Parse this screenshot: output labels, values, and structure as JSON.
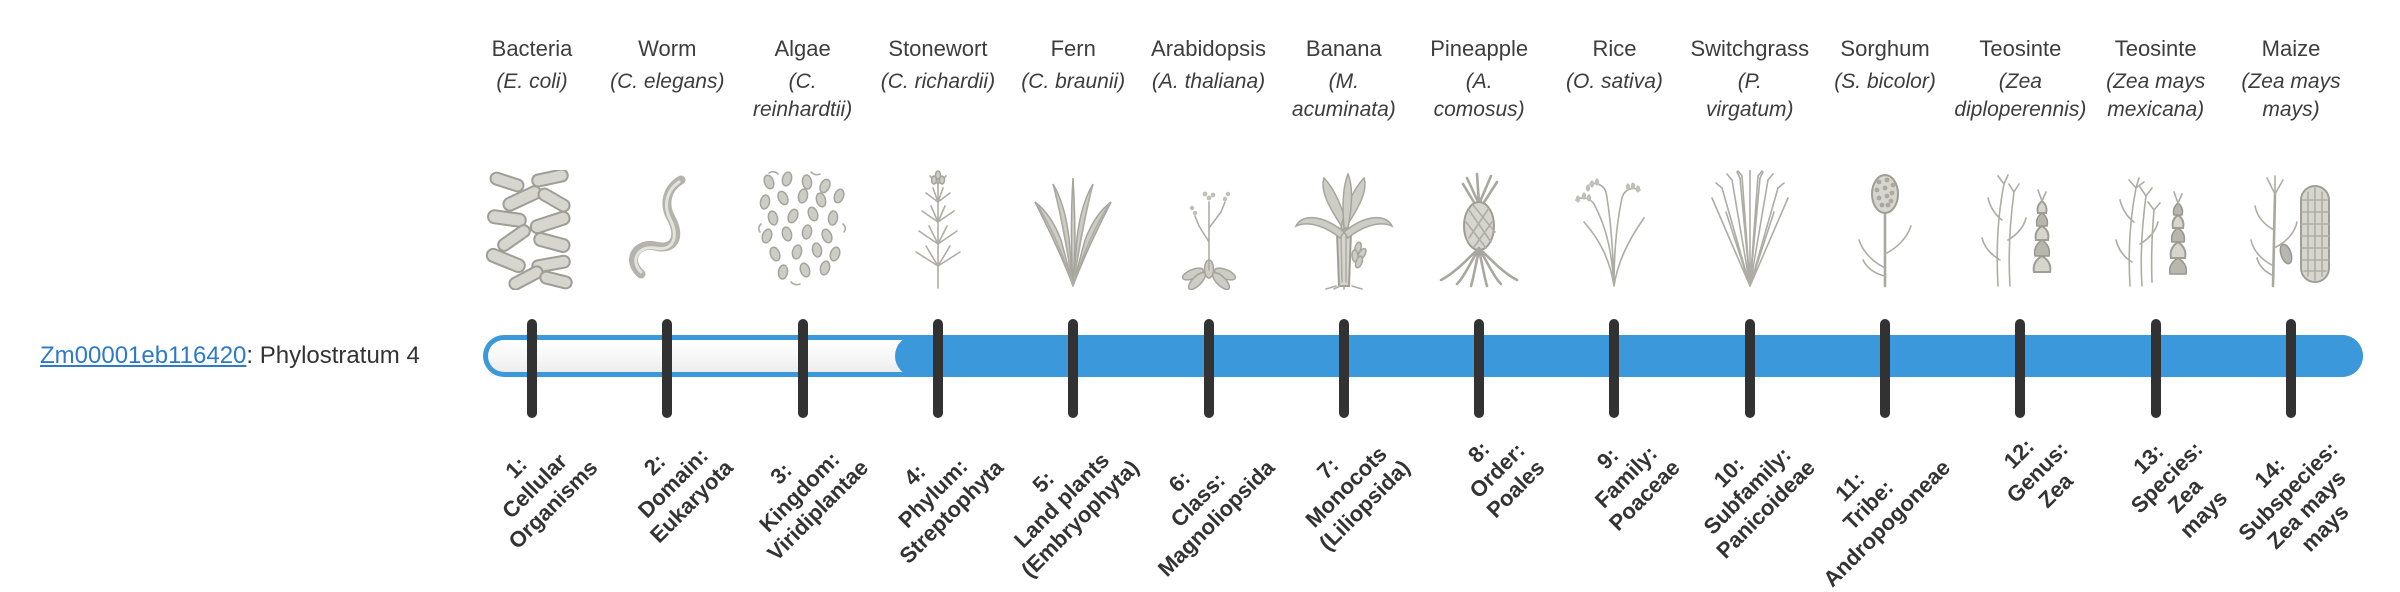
{
  "gene": {
    "id": "Zm00001eb116420",
    "suffix": ": Phylostratum 4"
  },
  "bar": {
    "origin_stratum": 4,
    "total_strata": 14
  },
  "colors": {
    "bar_blue": "#3b99db",
    "tick": "#323232",
    "link": "#2e7ac9",
    "text": "#3d3d3d"
  },
  "chart_data": {
    "type": "table",
    "title": "Zm00001eb116420: Phylostratum 4",
    "x": [
      1,
      2,
      3,
      4,
      5,
      6,
      7,
      8,
      9,
      10,
      11,
      12,
      13,
      14
    ],
    "filled_from_stratum": 4,
    "strata": [
      "1: Cellular Organisms",
      "2: Domain: Eukaryota",
      "3: Kingdom: Viridiplantae",
      "4: Phylum: Streptophyta",
      "5: Land plants (Embryophyta)",
      "6: Class: Magnoliopsida",
      "7: Monocots (Liliopsida)",
      "8: Order: Poales",
      "9: Family: Poaceae",
      "10: Subfamily: Panicoideae",
      "11: Tribe: Andropogoneae",
      "12: Genus: Zea",
      "13: Species: Zea mays",
      "14: Subspecies: Zea mays mays"
    ],
    "organisms": [
      "Bacteria (E. coli)",
      "Worm (C. elegans)",
      "Algae (C. reinhardtii)",
      "Stonewort (C. richardii)",
      "Fern (C. braunii)",
      "Arabidopsis (A. thaliana)",
      "Banana (M. acuminata)",
      "Pineapple (A. comosus)",
      "Rice (O. sativa)",
      "Switchgrass (P. virgatum)",
      "Sorghum (S. bicolor)",
      "Teosinte (Zea diploperennis)",
      "Teosinte (Zea mays mexicana)",
      "Maize (Zea mays mays)"
    ]
  },
  "columns": [
    {
      "organism": "Bacteria",
      "species_lines": [
        "(E. coli)"
      ],
      "icon": "bacteria-icon",
      "stratum_lines": [
        "1:",
        "Cellular",
        "Organisms"
      ]
    },
    {
      "organism": "Worm",
      "species_lines": [
        "(C. elegans)"
      ],
      "icon": "worm-icon",
      "stratum_lines": [
        "2:",
        "Domain:",
        "Eukaryota"
      ]
    },
    {
      "organism": "Algae",
      "species_lines": [
        "(C.",
        "reinhardtii)"
      ],
      "icon": "algae-icon",
      "stratum_lines": [
        "3:",
        "Kingdom:",
        "Viridiplantae"
      ]
    },
    {
      "organism": "Stonewort",
      "species_lines": [
        "(C. richardii)"
      ],
      "icon": "stonewort-icon",
      "stratum_lines": [
        "4:",
        "Phylum:",
        "Streptophyta"
      ]
    },
    {
      "organism": "Fern",
      "species_lines": [
        "(C. braunii)"
      ],
      "icon": "fern-icon",
      "stratum_lines": [
        "5:",
        "Land plants",
        "(Embryophyta)"
      ]
    },
    {
      "organism": "Arabidopsis",
      "species_lines": [
        "(A. thaliana)"
      ],
      "icon": "arabidopsis-icon",
      "stratum_lines": [
        "6:",
        "Class:",
        "Magnoliopsida"
      ]
    },
    {
      "organism": "Banana",
      "species_lines": [
        "(M.",
        "acuminata)"
      ],
      "icon": "banana-icon",
      "stratum_lines": [
        "7:",
        "Monocots",
        "(Liliopsida)"
      ]
    },
    {
      "organism": "Pineapple",
      "species_lines": [
        "(A.",
        "comosus)"
      ],
      "icon": "pineapple-icon",
      "stratum_lines": [
        "8:",
        "Order:",
        "Poales"
      ]
    },
    {
      "organism": "Rice",
      "species_lines": [
        "(O. sativa)"
      ],
      "icon": "rice-icon",
      "stratum_lines": [
        "9:",
        "Family:",
        "Poaceae"
      ]
    },
    {
      "organism": "Switchgrass",
      "species_lines": [
        "(P.",
        "virgatum)"
      ],
      "icon": "switchgrass-icon",
      "stratum_lines": [
        "10:",
        "Subfamily:",
        "Panicoideae"
      ]
    },
    {
      "organism": "Sorghum",
      "species_lines": [
        "(S. bicolor)"
      ],
      "icon": "sorghum-icon",
      "stratum_lines": [
        "11:",
        "Tribe:",
        "Andropogoneae"
      ]
    },
    {
      "organism": "Teosinte",
      "species_lines": [
        "(Zea",
        "diploperennis)"
      ],
      "icon": "teosinte-diploperennis-icon",
      "stratum_lines": [
        "12:",
        "Genus:",
        "Zea"
      ]
    },
    {
      "organism": "Teosinte",
      "species_lines": [
        "(Zea mays",
        "mexicana)"
      ],
      "icon": "teosinte-mexicana-icon",
      "stratum_lines": [
        "13:",
        "Species:",
        "Zea",
        "mays"
      ]
    },
    {
      "organism": "Maize",
      "species_lines": [
        "(Zea mays",
        "mays)"
      ],
      "icon": "maize-icon",
      "stratum_lines": [
        "14:",
        "Subspecies:",
        "Zea mays",
        "mays"
      ]
    }
  ]
}
